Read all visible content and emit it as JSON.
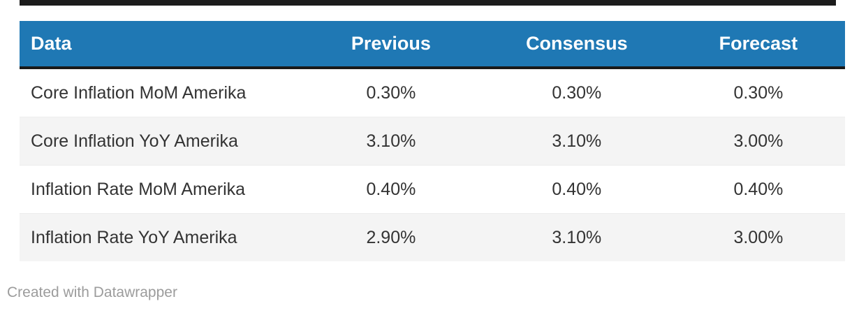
{
  "chart_data": {
    "type": "table",
    "columns": [
      "Data",
      "Previous",
      "Consensus",
      "Forecast"
    ],
    "rows": [
      [
        "Core Inflation MoM Amerika",
        "0.30%",
        "0.30%",
        "0.30%"
      ],
      [
        "Core Inflation YoY Amerika",
        "3.10%",
        "3.10%",
        "3.00%"
      ],
      [
        "Inflation Rate MoM Amerika",
        "0.40%",
        "0.40%",
        "0.40%"
      ],
      [
        "Inflation Rate YoY Amerika",
        "2.90%",
        "3.10%",
        "3.00%"
      ]
    ],
    "title": "",
    "layout_hints": {
      "zebra_striping": true,
      "header_row": true,
      "numeric_columns_alignment": "center",
      "label_column_alignment": "left"
    }
  },
  "footer": {
    "credit": "Created with Datawrapper"
  },
  "colors": {
    "header_bg": "#1f78b4",
    "header_text": "#ffffff",
    "top_bar": "#1c1c1c",
    "header_underline": "#191919",
    "row_alt_bg": "#f4f4f4",
    "row_text": "#333333",
    "footer_text": "#9c9c9c",
    "background": "#ffffff"
  }
}
